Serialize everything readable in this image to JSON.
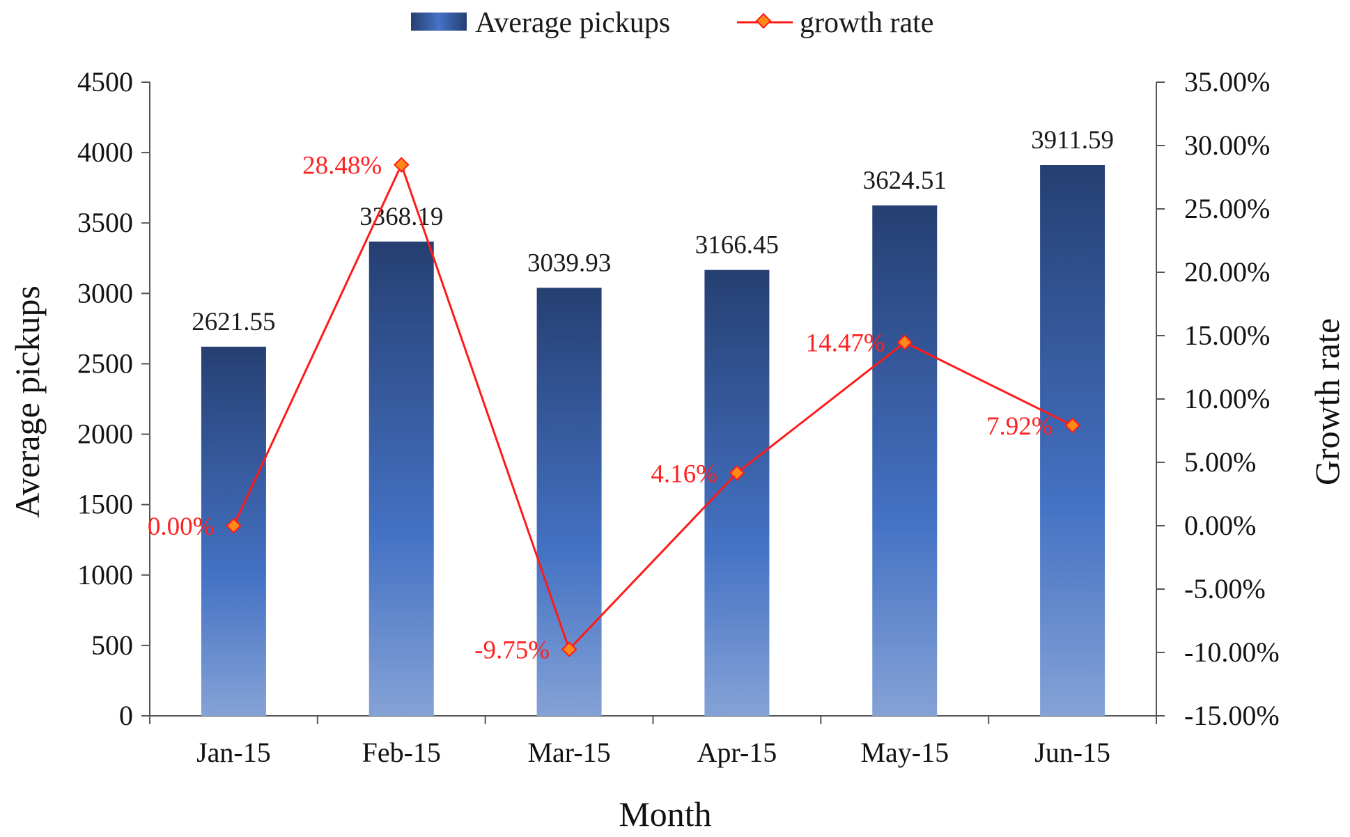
{
  "chart_data": {
    "type": "bar",
    "categories": [
      "Jan-15",
      "Feb-15",
      "Mar-15",
      "Apr-15",
      "May-15",
      "Jun-15"
    ],
    "series": [
      {
        "name": "Average pickups",
        "kind": "bar",
        "axis": "left",
        "values": [
          2621.55,
          3368.19,
          3039.93,
          3166.45,
          3624.51,
          3911.59
        ],
        "labels": [
          "2621.55",
          "3368.19",
          "3039.93",
          "3166.45",
          "3624.51",
          "3911.59"
        ]
      },
      {
        "name": "growth rate",
        "kind": "line",
        "axis": "right",
        "values": [
          0.0,
          28.48,
          -9.75,
          4.16,
          14.47,
          7.92
        ],
        "labels": [
          "0.00%",
          "28.48%",
          "-9.75%",
          "4.16%",
          "14.47%",
          "7.92%"
        ]
      }
    ],
    "xlabel": "Month",
    "ylabel": "Average pickups",
    "y2label": "Growth rate",
    "ylim": [
      0,
      4500
    ],
    "y2lim": [
      -15,
      35
    ],
    "yticks": [
      "0",
      "500",
      "1000",
      "1500",
      "2000",
      "2500",
      "3000",
      "3500",
      "4000",
      "4500"
    ],
    "y2ticks": [
      "-15.00%",
      "-10.00%",
      "-5.00%",
      "0.00%",
      "5.00%",
      "10.00%",
      "15.00%",
      "20.00%",
      "25.00%",
      "30.00%",
      "35.00%"
    ],
    "legend": {
      "position": "top-center",
      "entries": [
        "Average pickups",
        "growth rate"
      ]
    },
    "grid": false,
    "colors": {
      "bar_top": "#263f72",
      "bar_mid": "#4472c4",
      "bar_bottom": "#85a2d6",
      "line": "#ff1a1a",
      "marker_fill": "#ff8a1a",
      "growth_label": "#ff2020",
      "axis": "#555555"
    }
  }
}
